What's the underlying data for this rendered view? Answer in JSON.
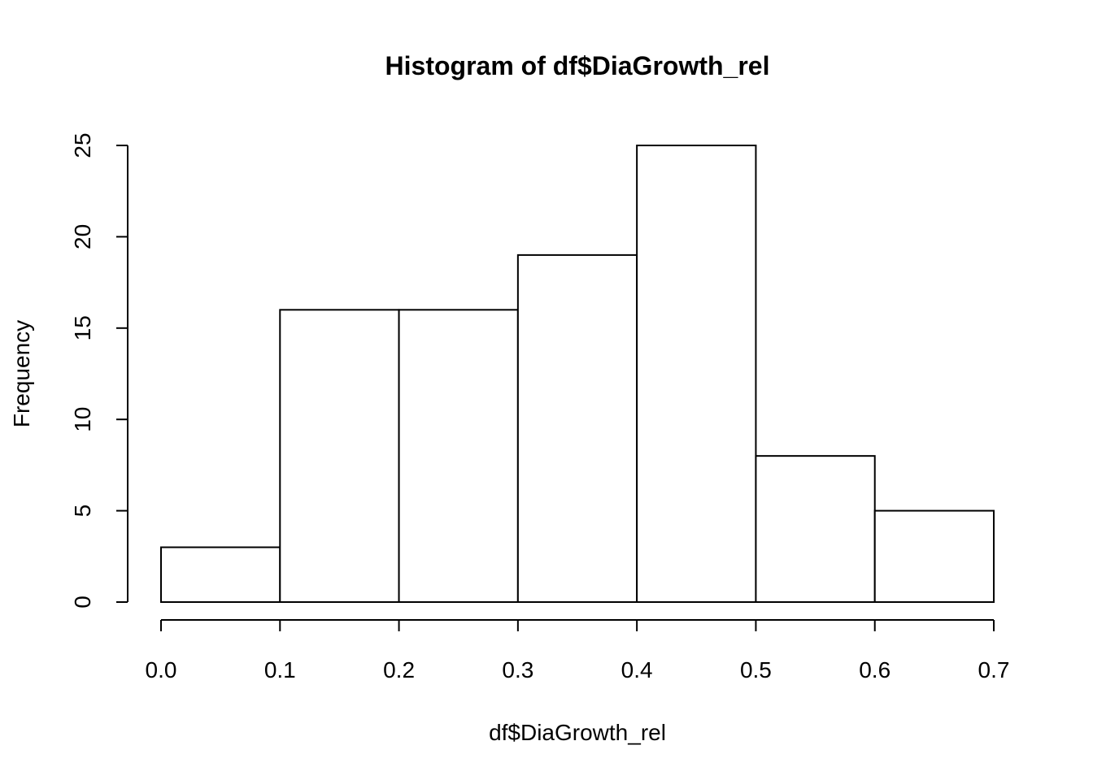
{
  "chart_data": {
    "type": "bar",
    "title": "Histogram of df$DiaGrowth_rel",
    "xlabel": "df$DiaGrowth_rel",
    "ylabel": "Frequency",
    "bins": [
      {
        "start": 0.0,
        "end": 0.1,
        "count": 3
      },
      {
        "start": 0.1,
        "end": 0.2,
        "count": 16
      },
      {
        "start": 0.2,
        "end": 0.3,
        "count": 16
      },
      {
        "start": 0.3,
        "end": 0.4,
        "count": 19
      },
      {
        "start": 0.4,
        "end": 0.5,
        "count": 25
      },
      {
        "start": 0.5,
        "end": 0.6,
        "count": 8
      },
      {
        "start": 0.6,
        "end": 0.7,
        "count": 5
      }
    ],
    "xlim": [
      0.0,
      0.7
    ],
    "ylim": [
      0,
      25
    ],
    "x_ticks": [
      "0.0",
      "0.1",
      "0.2",
      "0.3",
      "0.4",
      "0.5",
      "0.6",
      "0.7"
    ],
    "y_ticks": [
      "0",
      "5",
      "10",
      "15",
      "20",
      "25"
    ],
    "bar_fill": "#ffffff",
    "bar_stroke": "#000000",
    "grid": false
  }
}
